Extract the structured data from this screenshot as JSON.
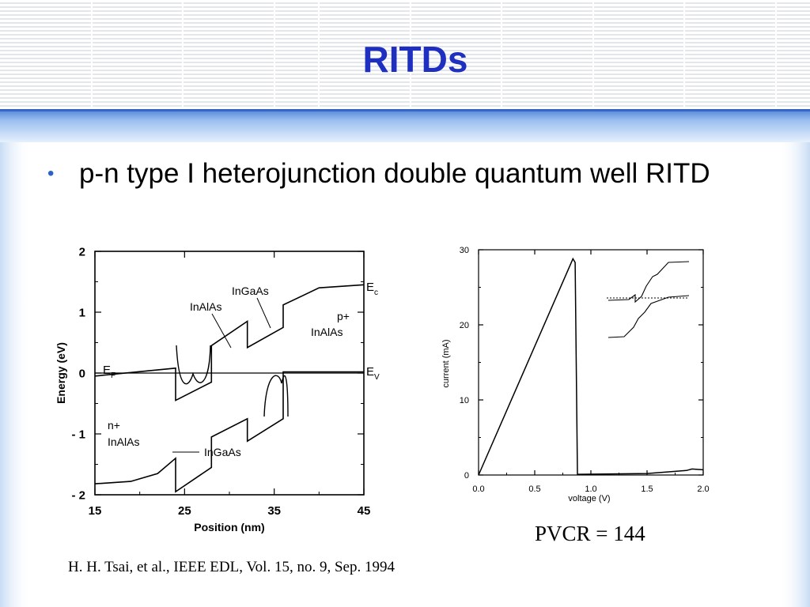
{
  "slide": {
    "title": "RITDs",
    "bullet": "p-n type I heterojunction double quantum well RITD",
    "pvcr": "PVCR = 144",
    "citation": "H. H. Tsai, et al., IEEE EDL, Vol. 15, no. 9,  Sep. 1994",
    "colors": {
      "title": "#1f2fbf",
      "band": "#8fb4ec",
      "band_light": "#cfe0f7",
      "bullet": "#2a62c8"
    }
  },
  "chart_data": [
    {
      "type": "line",
      "title": "",
      "xlabel": "Position (nm)",
      "ylabel": "Energy (eV)",
      "xlim": [
        15,
        45
      ],
      "ylim": [
        -2,
        2
      ],
      "xticks": [
        "15",
        "25",
        "35",
        "45"
      ],
      "yticks": [
        "- 2",
        "- 1",
        "0",
        "1",
        "2"
      ],
      "series": [
        {
          "name": "Ec",
          "x": [
            15,
            24,
            24,
            28,
            28,
            32,
            32,
            36,
            36,
            40,
            45
          ],
          "y": [
            -0.05,
            0.08,
            -0.45,
            -0.15,
            0.45,
            0.85,
            0.42,
            0.75,
            1.12,
            1.4,
            1.45
          ]
        },
        {
          "name": "Ev",
          "x": [
            15,
            19,
            22,
            24,
            24,
            28,
            28,
            32,
            32,
            36,
            36,
            40,
            45
          ],
          "y": [
            -1.82,
            -1.78,
            -1.65,
            -1.4,
            -1.95,
            -1.55,
            -1.05,
            -0.75,
            -1.12,
            -0.75,
            0.02,
            0.02,
            0.02
          ]
        }
      ],
      "annotations": [
        "InGaAs",
        "InAlAs",
        "p+",
        "InAlAs",
        "n+",
        "InAlAs",
        "InGaAs"
      ],
      "band_labels": {
        "ec": "E",
        "ec_sub": "c",
        "ev": "E",
        "ev_sub": "V",
        "ef": "E",
        "ef_sub": "F"
      }
    },
    {
      "type": "line",
      "title": "",
      "xlabel": "voltage (V)",
      "ylabel": "current (mA)",
      "xlim": [
        0,
        2
      ],
      "ylim": [
        0,
        30
      ],
      "xticks": [
        "0.0",
        "0.5",
        "1.0",
        "1.5",
        "2.0"
      ],
      "yticks": [
        "0",
        "10",
        "20",
        "30"
      ],
      "series": [
        {
          "name": "I-V",
          "x": [
            0,
            0.84,
            0.86,
            0.88,
            1.5,
            1.85,
            1.9,
            2.0
          ],
          "y": [
            0,
            28.8,
            28.3,
            0.1,
            0.2,
            0.6,
            0.8,
            0.7
          ]
        }
      ]
    }
  ]
}
